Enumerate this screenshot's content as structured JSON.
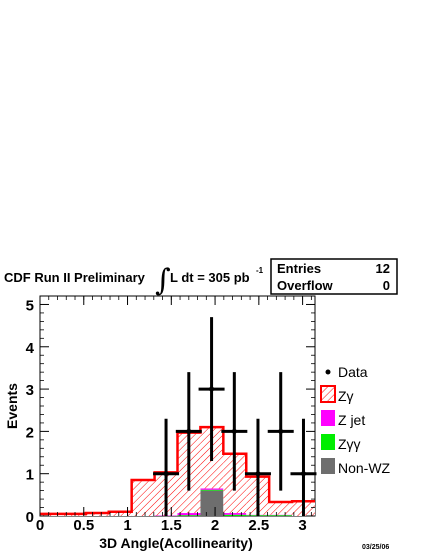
{
  "header": {
    "experiment": "CDF Run II Preliminary",
    "integral_sign": "∫",
    "lumi_text": "L dt = 305 pb",
    "lumi_exponent": "-1"
  },
  "stats_box": {
    "rows": [
      {
        "label": "Entries",
        "value": "12"
      },
      {
        "label": "Overflow",
        "value": "0"
      }
    ]
  },
  "date_stamp": "03/25/06",
  "chart_data": {
    "type": "bar",
    "xlabel": "3D Angle(Acollinearity)",
    "ylabel": "Events",
    "xlim": [
      0,
      3.1416
    ],
    "ylim": [
      0,
      5.2
    ],
    "x_ticks": [
      0,
      0.5,
      1,
      1.5,
      2,
      2.5,
      3
    ],
    "x_tick_labels": [
      "0",
      "0.5",
      "1",
      "1.5",
      "2",
      "2.5",
      "3"
    ],
    "y_ticks": [
      0,
      1,
      2,
      3,
      4,
      5
    ],
    "y_tick_labels": [
      "0",
      "1",
      "2",
      "3",
      "4",
      "5"
    ],
    "bin_edges": [
      0,
      0.2618,
      0.5236,
      0.7854,
      1.0472,
      1.309,
      1.5708,
      1.8326,
      2.0944,
      2.3562,
      2.618,
      2.8798,
      3.1416
    ],
    "stack": [
      {
        "name": "Non-WZ",
        "color": "#6e6e6e",
        "values": [
          0,
          0,
          0,
          0,
          0,
          0,
          0,
          0.6,
          0,
          0,
          0,
          0
        ]
      },
      {
        "name": "Zγγ",
        "color": "#00ee00",
        "values": [
          0,
          0,
          0,
          0,
          0,
          0,
          0.02,
          0.02,
          0.03,
          0.02,
          0.02,
          0
        ]
      },
      {
        "name": "Z jet",
        "color": "#ff00ff",
        "values": [
          0,
          0,
          0,
          0,
          0,
          0.01,
          0.05,
          0.03,
          0.04,
          0.01,
          0.01,
          0
        ]
      },
      {
        "name": "Zγ",
        "color": "#ff0000",
        "values": [
          0.05,
          0.05,
          0.07,
          0.1,
          0.85,
          1.02,
          1.9,
          1.45,
          1.4,
          0.9,
          0.3,
          0.35
        ]
      }
    ],
    "total_mc": [
      0.05,
      0.05,
      0.07,
      0.1,
      0.85,
      1.03,
      1.97,
      2.1,
      1.47,
      0.93,
      0.33,
      0.35
    ],
    "data": {
      "name": "Data",
      "x": [
        1.44,
        1.7,
        1.96,
        2.22,
        2.49,
        2.75,
        3.01
      ],
      "y": [
        1,
        2,
        3,
        2,
        1,
        2,
        1
      ],
      "err_low": [
        1,
        1.4,
        1.7,
        1.4,
        1,
        1.4,
        1
      ],
      "err_high": [
        1.3,
        1.4,
        1.7,
        1.4,
        1.3,
        1.4,
        1.3
      ]
    },
    "legend": [
      {
        "label": "Data",
        "marker": "dot"
      },
      {
        "label": "Zγ",
        "marker": "hatch",
        "color": "#ff0000"
      },
      {
        "label": "Z jet",
        "marker": "box",
        "color": "#ff00ff"
      },
      {
        "label": "Zγγ",
        "marker": "box",
        "color": "#00ee00"
      },
      {
        "label": "Non-WZ",
        "marker": "box",
        "color": "#6e6e6e"
      }
    ],
    "legend_position": "right",
    "grid": false
  }
}
